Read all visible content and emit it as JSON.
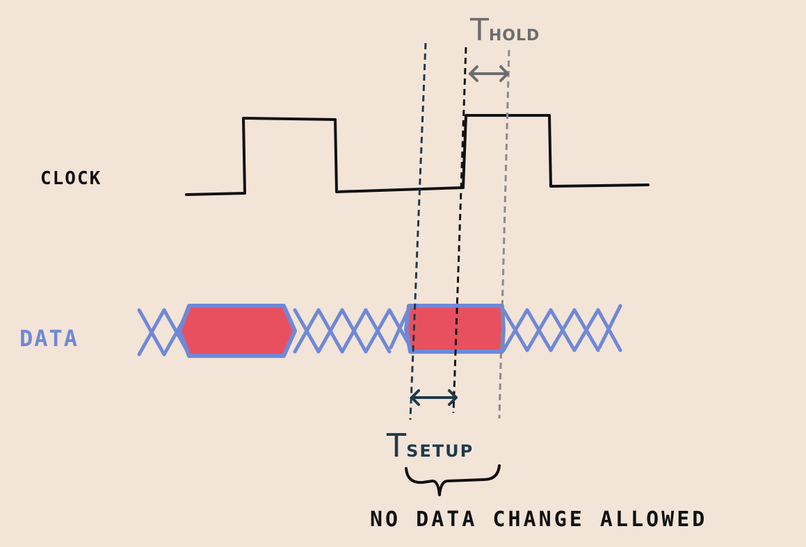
{
  "labels": {
    "clock": "CLOCK",
    "data": "DATA",
    "hold_t": "T",
    "hold_sub": "HOLD",
    "setup_t": "T",
    "setup_sub": "SETUP",
    "no_change": "NO DATA CHANGE ALLOWED"
  },
  "colors": {
    "background": "#f3e4d8",
    "clock_line": "#111111",
    "data_cross": "#6f88d8",
    "data_valid_fill": "#e8505f",
    "setup_marker": "#1f3a4a",
    "hold_marker": "#6c6c6c"
  }
}
